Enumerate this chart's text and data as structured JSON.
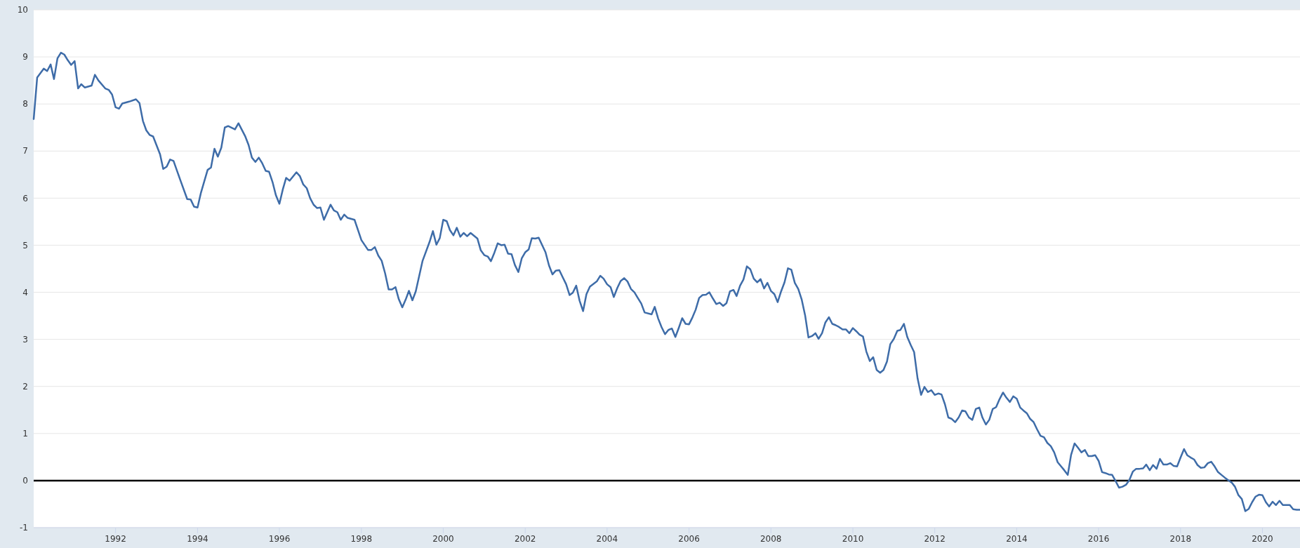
{
  "chart_data": {
    "type": "line",
    "xlim": [
      "1990-01-01",
      "2020-12-01"
    ],
    "xticks": [
      {
        "value": "1992-01-01",
        "label": "1992"
      },
      {
        "value": "1994-01-01",
        "label": "1994"
      },
      {
        "value": "1996-01-01",
        "label": "1996"
      },
      {
        "value": "1998-01-01",
        "label": "1998"
      },
      {
        "value": "2000-01-01",
        "label": "2000"
      },
      {
        "value": "2002-01-01",
        "label": "2002"
      },
      {
        "value": "2004-01-01",
        "label": "2004"
      },
      {
        "value": "2006-01-01",
        "label": "2006"
      },
      {
        "value": "2008-01-01",
        "label": "2008"
      },
      {
        "value": "2010-01-01",
        "label": "2010"
      },
      {
        "value": "2012-01-01",
        "label": "2012"
      },
      {
        "value": "2014-01-01",
        "label": "2014"
      },
      {
        "value": "2016-01-01",
        "label": "2016"
      },
      {
        "value": "2018-01-01",
        "label": "2018"
      },
      {
        "value": "2020-01-01",
        "label": "2020"
      }
    ],
    "ylim": [
      -1,
      10
    ],
    "yticks": [
      -1,
      0,
      1,
      2,
      3,
      4,
      5,
      6,
      7,
      8,
      9,
      10
    ],
    "grid": "y",
    "marker": "none",
    "line_style": "solid",
    "ref_lines": [
      {
        "axis": "y",
        "value": 0,
        "color": "#000000"
      }
    ],
    "series": [
      {
        "color": "#3e6ca8",
        "x": [
          "1990-01",
          "1990-02",
          "1990-04",
          "1990-05",
          "1990-06",
          "1990-07",
          "1990-08",
          "1990-09",
          "1990-10",
          "1990-11",
          "1990-12",
          "1991-01",
          "1991-02",
          "1991-03",
          "1991-04",
          "1991-06",
          "1991-07",
          "1991-08",
          "1991-10",
          "1991-11",
          "1991-12",
          "1992-01",
          "1992-02",
          "1992-03",
          "1992-05",
          "1992-07",
          "1992-08",
          "1992-09",
          "1992-10",
          "1992-11",
          "1992-12",
          "1993-02",
          "1993-03",
          "1993-04",
          "1993-05",
          "1993-06",
          "1993-08",
          "1993-10",
          "1993-11",
          "1993-12",
          "1994-01",
          "1994-02",
          "1994-04",
          "1994-05",
          "1994-06",
          "1994-07",
          "1994-08",
          "1994-09",
          "1994-10",
          "1994-12",
          "1995-01",
          "1995-03",
          "1995-04",
          "1995-05",
          "1995-06",
          "1995-07",
          "1995-08",
          "1995-09",
          "1995-10",
          "1995-11",
          "1995-12",
          "1996-01",
          "1996-02",
          "1996-03",
          "1996-04",
          "1996-06",
          "1996-07",
          "1996-08",
          "1996-09",
          "1996-10",
          "1996-11",
          "1996-12",
          "1997-01",
          "1997-02",
          "1997-04",
          "1997-05",
          "1997-06",
          "1997-07",
          "1997-08",
          "1997-09",
          "1997-11",
          "1998-01",
          "1998-03",
          "1998-04",
          "1998-05",
          "1998-06",
          "1998-07",
          "1998-08",
          "1998-09",
          "1998-10",
          "1998-11",
          "1998-12",
          "1999-01",
          "1999-02",
          "1999-03",
          "1999-04",
          "1999-05",
          "1999-07",
          "1999-09",
          "1999-10",
          "1999-11",
          "1999-12",
          "2000-01",
          "2000-02",
          "2000-03",
          "2000-04",
          "2000-05",
          "2000-06",
          "2000-07",
          "2000-08",
          "2000-09",
          "2000-11",
          "2000-12",
          "2001-01",
          "2001-02",
          "2001-03",
          "2001-04",
          "2001-05",
          "2001-06",
          "2001-07",
          "2001-08",
          "2001-09",
          "2001-10",
          "2001-11",
          "2001-12",
          "2002-01",
          "2002-02",
          "2002-03",
          "2002-04",
          "2002-05",
          "2002-07",
          "2002-08",
          "2002-09",
          "2002-10",
          "2002-11",
          "2002-12",
          "2003-01",
          "2003-02",
          "2003-03",
          "2003-04",
          "2003-05",
          "2003-06",
          "2003-07",
          "2003-08",
          "2003-10",
          "2003-11",
          "2003-12",
          "2004-01",
          "2004-02",
          "2004-03",
          "2004-04",
          "2004-05",
          "2004-06",
          "2004-07",
          "2004-08",
          "2004-09",
          "2004-10",
          "2004-11",
          "2004-12",
          "2005-02",
          "2005-03",
          "2005-04",
          "2005-05",
          "2005-06",
          "2005-07",
          "2005-08",
          "2005-09",
          "2005-10",
          "2005-11",
          "2005-12",
          "2006-01",
          "2006-02",
          "2006-03",
          "2006-04",
          "2006-05",
          "2006-06",
          "2006-07",
          "2006-08",
          "2006-09",
          "2006-10",
          "2006-11",
          "2006-12",
          "2007-01",
          "2007-02",
          "2007-03",
          "2007-04",
          "2007-05",
          "2007-06",
          "2007-07",
          "2007-08",
          "2007-09",
          "2007-10",
          "2007-11",
          "2007-12",
          "2008-01",
          "2008-02",
          "2008-03",
          "2008-04",
          "2008-05",
          "2008-06",
          "2008-07",
          "2008-08",
          "2008-09",
          "2008-10",
          "2008-11",
          "2008-12",
          "2009-01",
          "2009-02",
          "2009-03",
          "2009-04",
          "2009-05",
          "2009-06",
          "2009-07",
          "2009-08",
          "2009-09",
          "2009-10",
          "2009-11",
          "2009-12",
          "2010-01",
          "2010-02",
          "2010-03",
          "2010-04",
          "2010-05",
          "2010-06",
          "2010-07",
          "2010-08",
          "2010-09",
          "2010-10",
          "2010-11",
          "2010-12",
          "2011-01",
          "2011-02",
          "2011-03",
          "2011-04",
          "2011-05",
          "2011-06",
          "2011-07",
          "2011-08",
          "2011-09",
          "2011-10",
          "2011-11",
          "2011-12",
          "2012-01",
          "2012-02",
          "2012-03",
          "2012-04",
          "2012-05",
          "2012-06",
          "2012-07",
          "2012-08",
          "2012-09",
          "2012-10",
          "2012-11",
          "2012-12",
          "2013-01",
          "2013-02",
          "2013-03",
          "2013-04",
          "2013-05",
          "2013-06",
          "2013-07",
          "2013-08",
          "2013-09",
          "2013-10",
          "2013-11",
          "2013-12",
          "2014-01",
          "2014-02",
          "2014-03",
          "2014-04",
          "2014-05",
          "2014-06",
          "2014-07",
          "2014-08",
          "2014-09",
          "2014-10",
          "2014-11",
          "2014-12",
          "2015-01",
          "2015-02",
          "2015-03",
          "2015-04",
          "2015-05",
          "2015-06",
          "2015-07",
          "2015-08",
          "2015-09",
          "2015-10",
          "2015-11",
          "2015-12",
          "2016-01",
          "2016-02",
          "2016-03",
          "2016-04",
          "2016-05",
          "2016-06",
          "2016-07",
          "2016-08",
          "2016-09",
          "2016-10",
          "2016-11",
          "2016-12",
          "2017-01",
          "2017-02",
          "2017-03",
          "2017-04",
          "2017-05",
          "2017-06",
          "2017-07",
          "2017-08",
          "2017-09",
          "2017-10",
          "2017-11",
          "2017-12",
          "2018-01",
          "2018-02",
          "2018-03",
          "2018-04",
          "2018-05",
          "2018-06",
          "2018-07",
          "2018-08",
          "2018-09",
          "2018-10",
          "2018-11",
          "2018-12",
          "2019-01",
          "2019-02",
          "2019-03",
          "2019-04",
          "2019-05",
          "2019-06",
          "2019-07",
          "2019-08",
          "2019-09",
          "2019-10",
          "2019-11",
          "2019-12",
          "2020-01",
          "2020-02",
          "2020-03",
          "2020-04",
          "2020-05",
          "2020-06",
          "2020-07",
          "2020-08",
          "2020-09",
          "2020-10",
          "2020-11",
          "2020-12"
        ],
        "values": [
          7.68,
          8.56,
          8.75,
          8.7,
          8.84,
          8.53,
          8.97,
          9.09,
          9.05,
          8.93,
          8.83,
          8.91,
          8.33,
          8.42,
          8.35,
          8.39,
          8.62,
          8.5,
          8.33,
          8.3,
          8.2,
          7.93,
          7.9,
          8.01,
          8.05,
          8.1,
          8.02,
          7.64,
          7.44,
          7.34,
          7.31,
          6.93,
          6.62,
          6.67,
          6.82,
          6.79,
          6.38,
          5.98,
          5.97,
          5.82,
          5.8,
          6.12,
          6.6,
          6.65,
          7.05,
          6.88,
          7.07,
          7.5,
          7.53,
          7.46,
          7.59,
          7.32,
          7.13,
          6.86,
          6.77,
          6.86,
          6.74,
          6.58,
          6.56,
          6.34,
          6.06,
          5.88,
          6.19,
          6.43,
          6.37,
          6.55,
          6.47,
          6.29,
          6.21,
          6.0,
          5.86,
          5.79,
          5.8,
          5.54,
          5.86,
          5.74,
          5.7,
          5.54,
          5.65,
          5.58,
          5.54,
          5.11,
          4.9,
          4.9,
          4.96,
          4.78,
          4.67,
          4.4,
          4.06,
          4.06,
          4.11,
          3.85,
          3.68,
          3.85,
          4.03,
          3.83,
          4.02,
          4.67,
          5.07,
          5.3,
          5.01,
          5.15,
          5.54,
          5.51,
          5.32,
          5.21,
          5.37,
          5.18,
          5.26,
          5.19,
          5.26,
          5.14,
          4.89,
          4.79,
          4.76,
          4.66,
          4.84,
          5.04,
          5.0,
          5.01,
          4.82,
          4.81,
          4.58,
          4.43,
          4.72,
          4.85,
          4.91,
          5.15,
          5.14,
          5.16,
          4.85,
          4.57,
          4.38,
          4.46,
          4.47,
          4.32,
          4.17,
          3.94,
          3.99,
          4.14,
          3.82,
          3.6,
          3.96,
          4.12,
          4.23,
          4.35,
          4.29,
          4.17,
          4.11,
          3.9,
          4.09,
          4.24,
          4.3,
          4.23,
          4.07,
          4.0,
          3.88,
          3.76,
          3.57,
          3.53,
          3.69,
          3.44,
          3.26,
          3.11,
          3.2,
          3.23,
          3.05,
          3.24,
          3.45,
          3.33,
          3.32,
          3.47,
          3.63,
          3.88,
          3.94,
          3.95,
          4.0,
          3.87,
          3.75,
          3.78,
          3.71,
          3.77,
          4.02,
          4.05,
          3.92,
          4.14,
          4.27,
          4.55,
          4.49,
          4.29,
          4.21,
          4.28,
          4.08,
          4.2,
          4.03,
          3.96,
          3.79,
          4.02,
          4.21,
          4.51,
          4.48,
          4.2,
          4.07,
          3.85,
          3.51,
          3.04,
          3.07,
          3.13,
          3.01,
          3.13,
          3.36,
          3.47,
          3.33,
          3.3,
          3.26,
          3.21,
          3.21,
          3.13,
          3.24,
          3.17,
          3.1,
          3.06,
          2.74,
          2.54,
          2.62,
          2.35,
          2.29,
          2.35,
          2.53,
          2.9,
          3.01,
          3.18,
          3.2,
          3.33,
          3.05,
          2.88,
          2.73,
          2.17,
          1.82,
          1.99,
          1.88,
          1.92,
          1.82,
          1.85,
          1.83,
          1.62,
          1.34,
          1.31,
          1.24,
          1.34,
          1.49,
          1.47,
          1.34,
          1.29,
          1.52,
          1.55,
          1.34,
          1.19,
          1.29,
          1.52,
          1.56,
          1.73,
          1.87,
          1.76,
          1.67,
          1.79,
          1.74,
          1.55,
          1.49,
          1.43,
          1.31,
          1.24,
          1.09,
          0.95,
          0.92,
          0.8,
          0.73,
          0.6,
          0.39,
          0.3,
          0.22,
          0.12,
          0.55,
          0.79,
          0.7,
          0.6,
          0.65,
          0.52,
          0.52,
          0.54,
          0.42,
          0.18,
          0.16,
          0.13,
          0.12,
          -0.01,
          -0.15,
          -0.13,
          -0.09,
          0.01,
          0.19,
          0.25,
          0.25,
          0.26,
          0.34,
          0.22,
          0.33,
          0.25,
          0.46,
          0.34,
          0.34,
          0.37,
          0.31,
          0.3,
          0.49,
          0.67,
          0.54,
          0.49,
          0.45,
          0.33,
          0.27,
          0.28,
          0.37,
          0.4,
          0.3,
          0.18,
          0.12,
          0.06,
          0.01,
          -0.04,
          -0.13,
          -0.31,
          -0.39,
          -0.65,
          -0.6,
          -0.46,
          -0.34,
          -0.3,
          -0.31,
          -0.46,
          -0.55,
          -0.45,
          -0.52,
          -0.43,
          -0.52,
          -0.52,
          -0.52,
          -0.61,
          -0.62,
          -0.62
        ]
      }
    ]
  }
}
